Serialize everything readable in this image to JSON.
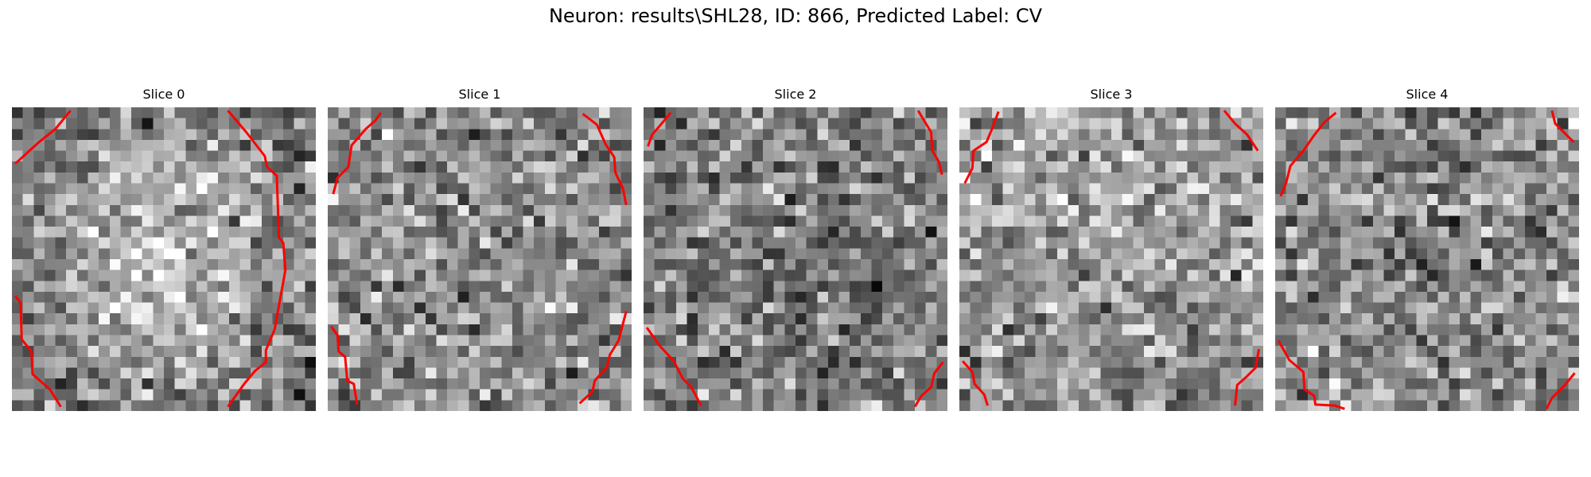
{
  "figure": {
    "suptitle": "Neuron: results\\SHL28, ID: 866, Predicted Label: CV",
    "grid_size": 28,
    "contour_color": "#ff0000",
    "slices": [
      {
        "title": "Slice 0",
        "seed": 11,
        "tone": "bright-center",
        "contours": [
          [
            [
              0.3,
              5.2
            ],
            [
              2.5,
              3.2
            ],
            [
              4,
              2
            ],
            [
              5.4,
              0.3
            ]
          ],
          [
            [
              19.9,
              0.3
            ],
            [
              21.6,
              2.3
            ],
            [
              23.3,
              4.5
            ],
            [
              23.5,
              5.5
            ],
            [
              24.4,
              6.3
            ],
            [
              24.5,
              9
            ],
            [
              24.6,
              12
            ],
            [
              25,
              12.5
            ],
            [
              25.2,
              15
            ],
            [
              24.2,
              20.5
            ],
            [
              23.4,
              22.4
            ],
            [
              23.4,
              23.5
            ],
            [
              22.4,
              24.3
            ],
            [
              21.4,
              25.5
            ],
            [
              19.9,
              27.6
            ]
          ],
          [
            [
              0.3,
              17.4
            ],
            [
              0.8,
              18
            ],
            [
              0.9,
              21.4
            ],
            [
              1.8,
              22.5
            ],
            [
              1.9,
              24.6
            ],
            [
              3.5,
              26
            ],
            [
              4.5,
              27.6
            ]
          ]
        ]
      },
      {
        "title": "Slice 1",
        "seed": 23,
        "tone": "neutral",
        "contours": [
          [
            [
              0.5,
              8
            ],
            [
              0.9,
              6.5
            ],
            [
              1.9,
              5.5
            ],
            [
              2.2,
              3.5
            ],
            [
              3.5,
              2
            ],
            [
              4.4,
              1.2
            ],
            [
              4.9,
              0.5
            ]
          ],
          [
            [
              23.5,
              0.6
            ],
            [
              24.8,
              1.6
            ],
            [
              25.6,
              3.4
            ],
            [
              26.4,
              4.6
            ],
            [
              26.5,
              6
            ],
            [
              27.2,
              7.5
            ],
            [
              27.5,
              9
            ]
          ],
          [
            [
              0.3,
              20.2
            ],
            [
              0.9,
              21
            ],
            [
              1,
              22.5
            ],
            [
              1.6,
              23
            ],
            [
              1.8,
              25.2
            ],
            [
              2.4,
              25.5
            ],
            [
              2.7,
              27.4
            ]
          ],
          [
            [
              27.5,
              18.8
            ],
            [
              26.8,
              21.5
            ],
            [
              26,
              22.8
            ],
            [
              25.7,
              24
            ],
            [
              24.6,
              25.2
            ],
            [
              24.4,
              26.2
            ],
            [
              23.2,
              27.3
            ]
          ]
        ]
      },
      {
        "title": "Slice 2",
        "seed": 37,
        "tone": "dark",
        "contours": [
          [
            [
              0.4,
              3.6
            ],
            [
              0.8,
              2.5
            ],
            [
              1.5,
              1.7
            ],
            [
              2.5,
              0.5
            ]
          ],
          [
            [
              25.3,
              0.3
            ],
            [
              25.9,
              1.3
            ],
            [
              26.5,
              2.3
            ],
            [
              26.6,
              4
            ],
            [
              27.2,
              5
            ],
            [
              27.5,
              6.2
            ]
          ],
          [
            [
              0.3,
              20.3
            ],
            [
              1.5,
              22
            ],
            [
              2.8,
              23.4
            ],
            [
              3.6,
              25
            ],
            [
              4.4,
              25.8
            ],
            [
              5.3,
              27.5
            ]
          ],
          [
            [
              27.6,
              23.5
            ],
            [
              26.8,
              24.5
            ],
            [
              26.5,
              25.8
            ],
            [
              25.6,
              26.6
            ],
            [
              25,
              27.6
            ]
          ]
        ]
      },
      {
        "title": "Slice 3",
        "seed": 51,
        "tone": "bright-top",
        "contours": [
          [
            [
              0.5,
              7
            ],
            [
              1.2,
              5.6
            ],
            [
              1.3,
              4
            ],
            [
              2.5,
              3.2
            ],
            [
              3,
              2
            ],
            [
              3.6,
              0.4
            ]
          ],
          [
            [
              24.4,
              0.3
            ],
            [
              25.4,
              1.5
            ],
            [
              26.5,
              2.5
            ],
            [
              27.5,
              4
            ]
          ],
          [
            [
              0.3,
              23.4
            ],
            [
              1.2,
              24.4
            ],
            [
              1.4,
              25.5
            ],
            [
              2.3,
              26.5
            ],
            [
              2.6,
              27.5
            ]
          ],
          [
            [
              27.6,
              22.3
            ],
            [
              27.3,
              24
            ],
            [
              26.5,
              24.8
            ],
            [
              25.6,
              25.6
            ],
            [
              25.4,
              27.5
            ]
          ]
        ]
      },
      {
        "title": "Slice 4",
        "seed": 67,
        "tone": "neutral",
        "contours": [
          [
            [
              0.5,
              8.2
            ],
            [
              1,
              7
            ],
            [
              1.4,
              5.4
            ],
            [
              2.6,
              4
            ],
            [
              3.5,
              2.7
            ],
            [
              4.5,
              1.4
            ],
            [
              5.6,
              0.5
            ]
          ],
          [
            [
              25.5,
              0.3
            ],
            [
              25.8,
              1.5
            ],
            [
              26.6,
              2.3
            ],
            [
              27.5,
              3.2
            ]
          ],
          [
            [
              0.3,
              21.5
            ],
            [
              1.3,
              23.3
            ],
            [
              2.6,
              24.4
            ],
            [
              2.7,
              26
            ],
            [
              3.6,
              26.6
            ],
            [
              3.7,
              27.4
            ],
            [
              5.5,
              27.5
            ],
            [
              6.4,
              27.8
            ]
          ],
          [
            [
              27.6,
              24.5
            ],
            [
              26.7,
              25.6
            ],
            [
              25.5,
              26.8
            ],
            [
              25,
              27.8
            ]
          ]
        ]
      }
    ]
  }
}
